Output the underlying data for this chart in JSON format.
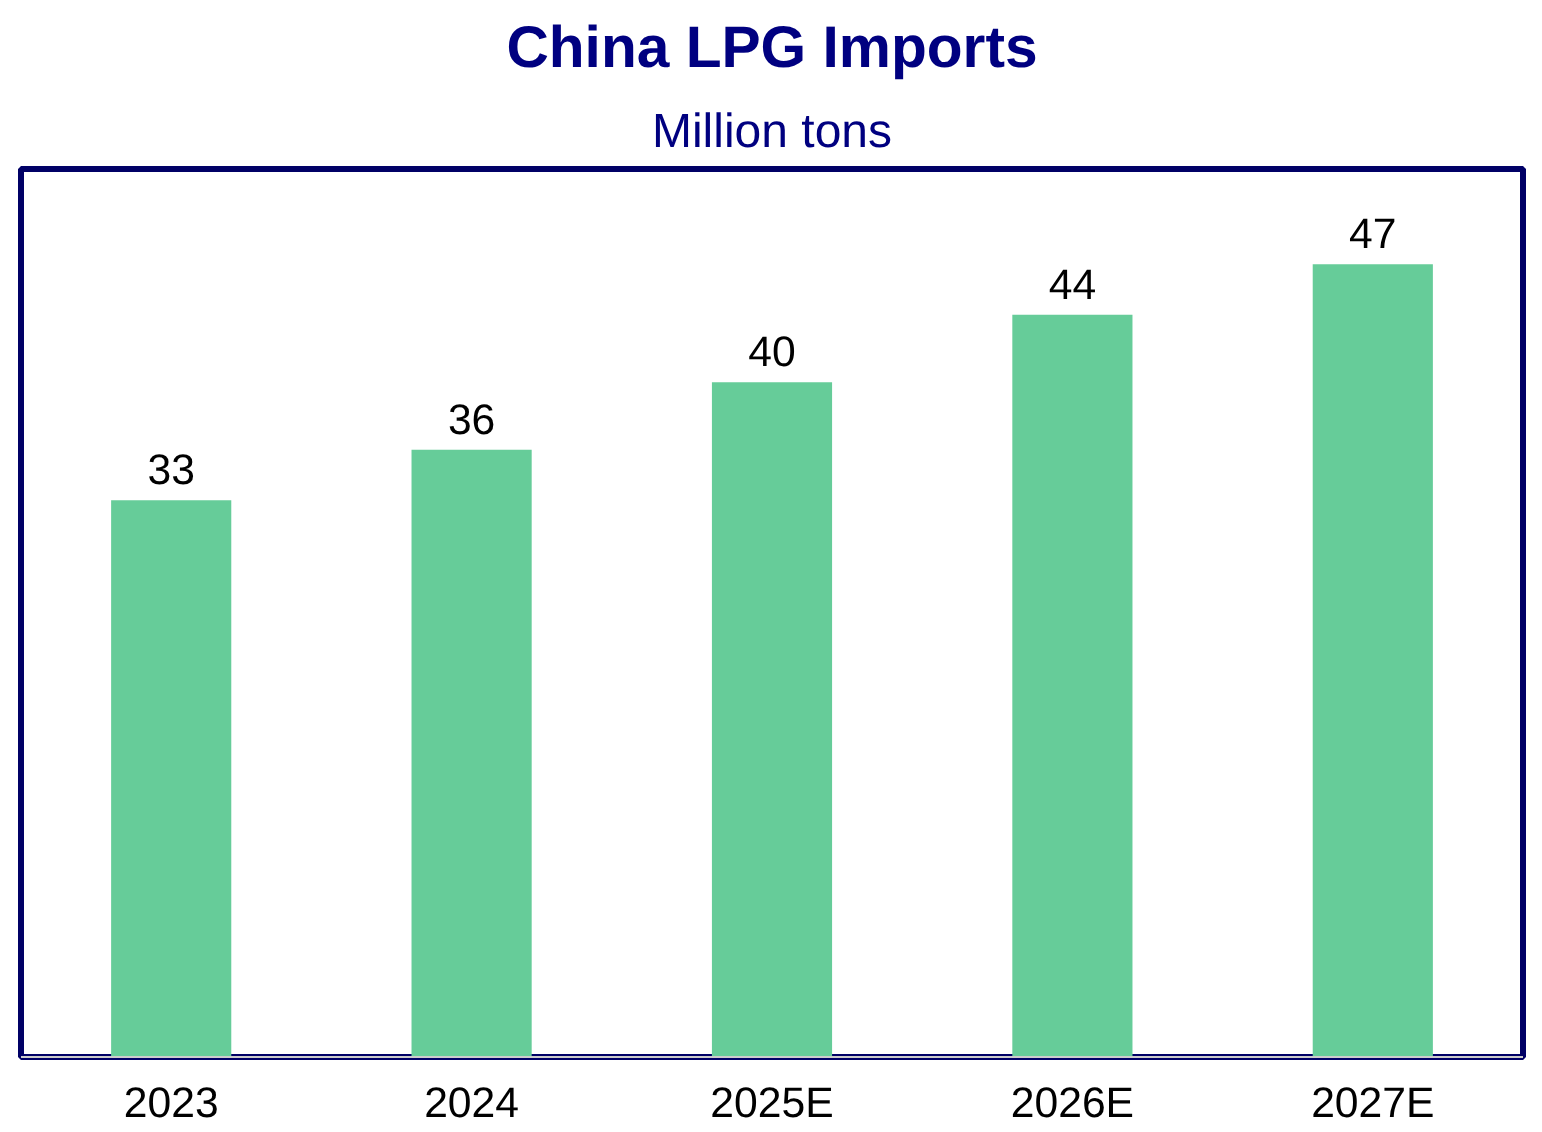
{
  "chart_data": {
    "type": "bar",
    "title": "China LPG Imports",
    "subtitle": "Million tons",
    "categories": [
      "2023",
      "2024",
      "2025E",
      "2026E",
      "2027E"
    ],
    "values": [
      33,
      36,
      40,
      44,
      47
    ],
    "color": "#66cc99",
    "data_labels": true
  }
}
